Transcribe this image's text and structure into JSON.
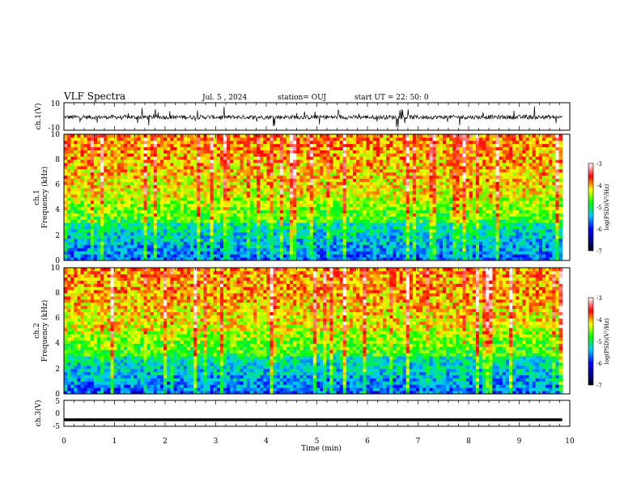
{
  "header": {
    "title": "VLF Spectra",
    "date": "Jul. 5 , 2024",
    "station": "station= OUJ",
    "start": "start UT = 22: 50: 0"
  },
  "chart_data": [
    {
      "type": "line",
      "panel": "ch1-waveform",
      "ylabel": "ch.1(V)",
      "ylim": [
        -10,
        10
      ],
      "yticks": [
        "10",
        "-10"
      ],
      "xlim": [
        0,
        10
      ],
      "baseline": -0.5,
      "data_extent_min": 9.85,
      "color": "#000000"
    },
    {
      "type": "heatmap",
      "panel": "ch1-spectrogram",
      "ylabel_line1": "ch.1",
      "ylabel_line2": "Frequency (kHz)",
      "ylim": [
        0,
        10
      ],
      "yticks": [
        "0",
        "2",
        "4",
        "6",
        "8",
        "10"
      ],
      "xlim": [
        0,
        10
      ],
      "data_extent_min": 9.85,
      "colorbar": {
        "label": "log(PSD)(V²/Hz)",
        "range": [
          -7,
          -3
        ],
        "ticks": [
          "-3",
          "-4",
          "-5",
          "-6",
          "-7"
        ]
      }
    },
    {
      "type": "heatmap",
      "panel": "ch2-spectrogram",
      "ylabel_line1": "ch.2",
      "ylabel_line2": "Frequency (kHz)",
      "ylim": [
        0,
        10
      ],
      "yticks": [
        "0",
        "2",
        "4",
        "6",
        "8",
        "10"
      ],
      "xlim": [
        0,
        10
      ],
      "data_extent_min": 9.85,
      "colorbar": {
        "label": "log(PSD)(V²/Hz)",
        "range": [
          -7,
          -3
        ],
        "ticks": [
          "-3",
          "-4",
          "-5",
          "-6",
          "-7"
        ]
      }
    },
    {
      "type": "line",
      "panel": "ch3-waveform",
      "ylabel": "ch.3(V)",
      "ylim": [
        -5,
        5
      ],
      "yticks": [
        "5",
        "0",
        "-5"
      ],
      "xlim": [
        0,
        10
      ],
      "baseline": -2.5,
      "data_extent_min": 9.85,
      "color": "#000000"
    }
  ],
  "xaxis": {
    "label": "Time (min)",
    "ticks": [
      "0",
      "1",
      "2",
      "3",
      "4",
      "5",
      "6",
      "7",
      "8",
      "9",
      "10"
    ]
  }
}
